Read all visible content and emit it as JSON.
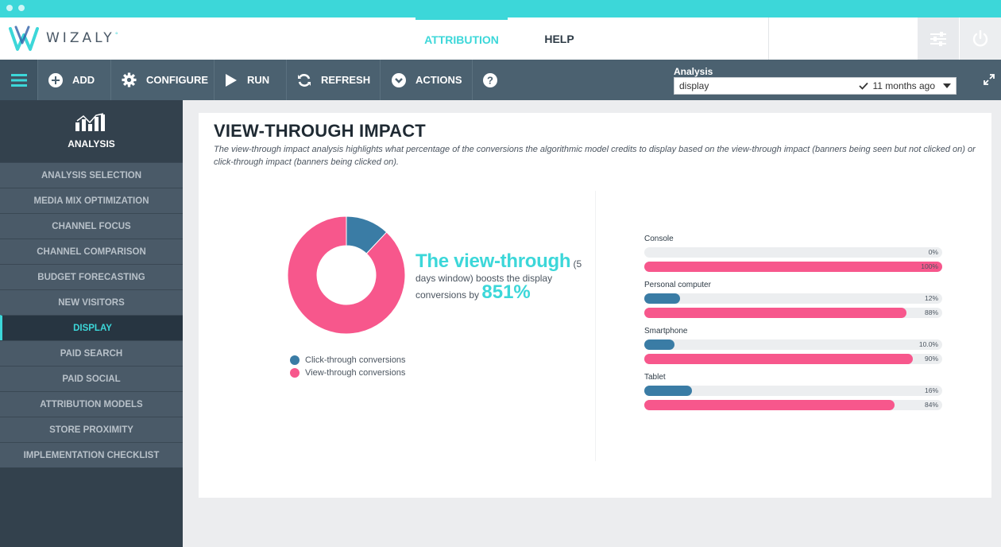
{
  "app": {
    "brand": "WIZALY"
  },
  "topnav": {
    "attribution": "ATTRIBUTION",
    "help": "HELP"
  },
  "toolbar": {
    "add": "ADD",
    "configure": "CONFIGURE",
    "run": "RUN",
    "refresh": "REFRESH",
    "actions": "ACTIONS",
    "analysis_label": "Analysis",
    "analysis_value": "display",
    "analysis_age": "11 months ago"
  },
  "sidebar": {
    "section_title": "ANALYSIS",
    "items": [
      {
        "label": "ANALYSIS SELECTION"
      },
      {
        "label": "MEDIA MIX OPTIMIZATION"
      },
      {
        "label": "CHANNEL FOCUS"
      },
      {
        "label": "CHANNEL COMPARISON"
      },
      {
        "label": "BUDGET FORECASTING"
      },
      {
        "label": "NEW VISITORS"
      },
      {
        "label": "DISPLAY"
      },
      {
        "label": "PAID SEARCH"
      },
      {
        "label": "PAID SOCIAL"
      },
      {
        "label": "ATTRIBUTION MODELS"
      },
      {
        "label": "STORE PROXIMITY"
      },
      {
        "label": "IMPLEMENTATION CHECKLIST"
      }
    ],
    "active_index": 6
  },
  "main": {
    "title": "VIEW-THROUGH IMPACT",
    "description": "The view-through impact analysis highlights what percentage of the conversions the algorithmic model credits to display based on the view-through impact (banners being seen but not clicked on) or click-through impact (banners being clicked on).",
    "boost": {
      "headline": "The view-through",
      "text_1": " (5 days window) boosts the display conversions by ",
      "value": "851%"
    }
  },
  "colors": {
    "accent": "#3cd7d9",
    "click_through": "#3a7ca5",
    "view_through": "#f7578c"
  },
  "chart_data": [
    {
      "type": "pie",
      "variant": "donut",
      "labels": [
        "Click-through conversions",
        "View-through conversions"
      ],
      "values": [
        12,
        88
      ],
      "colors": [
        "#3a7ca5",
        "#f7578c"
      ],
      "legend": "bottom"
    },
    {
      "type": "bar",
      "orientation": "horizontal",
      "categories": [
        "Console",
        "Personal computer",
        "Smartphone",
        "Tablet"
      ],
      "series": [
        {
          "values": [
            0,
            12,
            10,
            16
          ],
          "labels": [
            "0%",
            "12%",
            "10.0%",
            "16%"
          ],
          "color": "#3a7ca5"
        },
        {
          "values": [
            100,
            88,
            90,
            84
          ],
          "labels": [
            "100%",
            "88%",
            "90%",
            "84%"
          ],
          "color": "#f7578c"
        }
      ],
      "xlim": [
        0,
        100
      ]
    }
  ]
}
